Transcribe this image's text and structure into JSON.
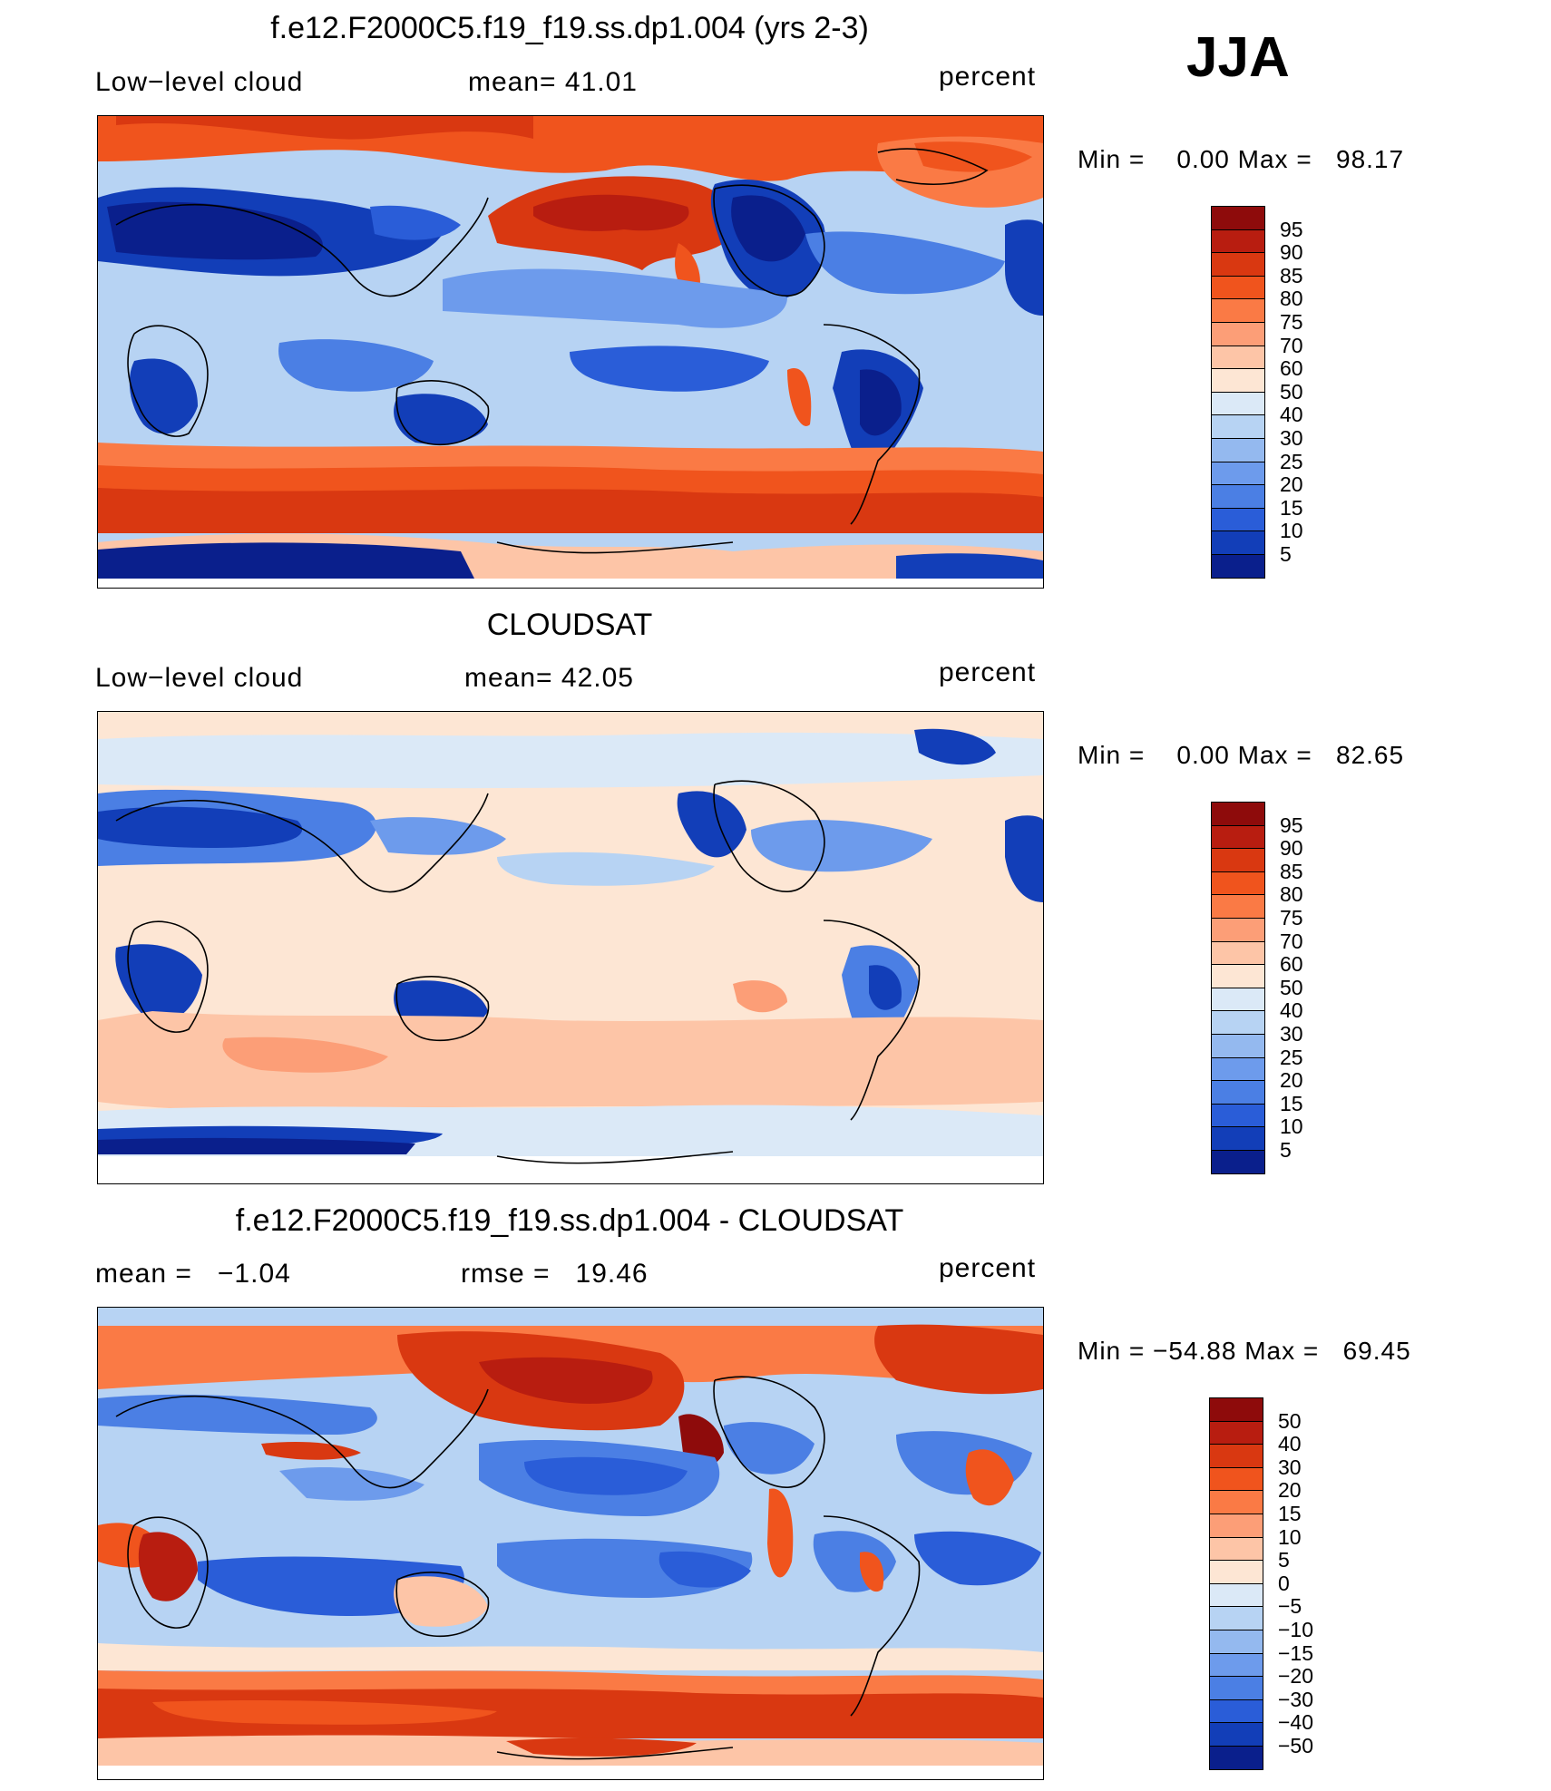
{
  "season": "JJA",
  "panels": [
    {
      "title": "f.e12.F2000C5.f19_f19.ss.dp1.004 (yrs 2-3)",
      "left_label": "Low−level cloud",
      "mid_label": "mean=   41.01",
      "right_label": "percent",
      "minmax": "Min =    0.00 Max =   98.17",
      "colorbar": {
        "labels": [
          "95",
          "90",
          "85",
          "80",
          "75",
          "70",
          "60",
          "50",
          "40",
          "30",
          "25",
          "20",
          "15",
          "10",
          "5"
        ],
        "colors": [
          "#8e0b0b",
          "#b81d10",
          "#d93811",
          "#f0541d",
          "#fa7a45",
          "#fc9e77",
          "#fdc5a7",
          "#fde6d4",
          "#dbe9f7",
          "#b7d3f3",
          "#94b9ef",
          "#6d9bec",
          "#4b7fe4",
          "#2a5dd8",
          "#123eb8",
          "#0a1f8c"
        ]
      }
    },
    {
      "title": "CLOUDSAT",
      "left_label": "Low−level cloud",
      "mid_label": "mean=   42.05",
      "right_label": "percent",
      "minmax": "Min =    0.00 Max =   82.65",
      "colorbar": {
        "labels": [
          "95",
          "90",
          "85",
          "80",
          "75",
          "70",
          "60",
          "50",
          "40",
          "30",
          "25",
          "20",
          "15",
          "10",
          "5"
        ],
        "colors": [
          "#8e0b0b",
          "#b81d10",
          "#d93811",
          "#f0541d",
          "#fa7a45",
          "#fc9e77",
          "#fdc5a7",
          "#fde6d4",
          "#dbe9f7",
          "#b7d3f3",
          "#94b9ef",
          "#6d9bec",
          "#4b7fe4",
          "#2a5dd8",
          "#123eb8",
          "#0a1f8c"
        ]
      }
    },
    {
      "title": "f.e12.F2000C5.f19_f19.ss.dp1.004 - CLOUDSAT",
      "left_label": "mean =   −1.04",
      "mid_label": "rmse =   19.46",
      "right_label": "percent",
      "minmax": "Min = −54.88 Max =   69.45",
      "colorbar": {
        "labels": [
          "50",
          "40",
          "30",
          "20",
          "15",
          "10",
          "5",
          "0",
          "−5",
          "−10",
          "−15",
          "−20",
          "−30",
          "−40",
          "−50"
        ],
        "colors": [
          "#8e0b0b",
          "#b81d10",
          "#d93811",
          "#f0541d",
          "#fa7a45",
          "#fc9e77",
          "#fdc5a7",
          "#fde6d4",
          "#dbe9f7",
          "#b7d3f3",
          "#94b9ef",
          "#6d9bec",
          "#4b7fe4",
          "#2a5dd8",
          "#123eb8",
          "#0a1f8c"
        ]
      }
    }
  ]
}
